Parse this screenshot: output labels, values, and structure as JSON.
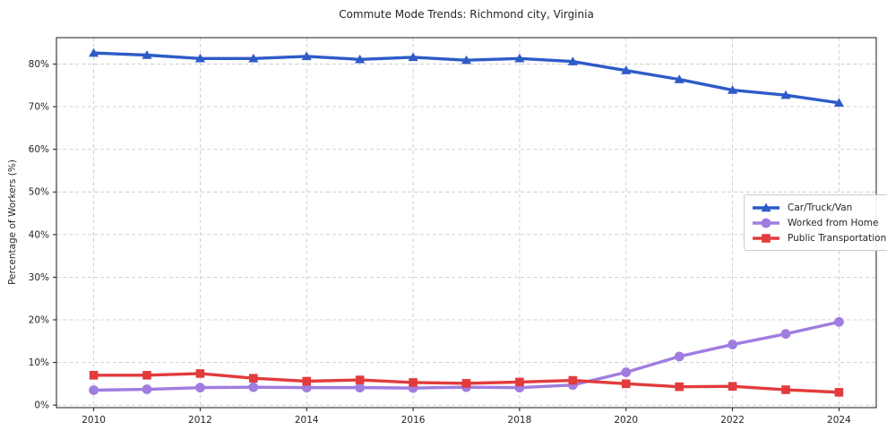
{
  "title": "Commute Mode Trends: Richmond city, Virginia",
  "colors": {
    "car": "#2d5bc8",
    "home": "#a07de0",
    "transit": "#e23b3c",
    "grid": "#cccccc",
    "spine": "#1a1a1a",
    "text": "#262626",
    "legend_border": "#cccccc",
    "background": "#ffffff"
  },
  "chart_data": {
    "type": "line",
    "title": "Commute Mode Trends: Richmond city, Virginia",
    "xlabel": "",
    "ylabel": "Percentage of Workers (%)",
    "grid": true,
    "legend_position": "center right",
    "xlim": [
      2009.3,
      2024.7
    ],
    "ylim": [
      -0.6,
      86.2
    ],
    "x": [
      2010,
      2011,
      2012,
      2013,
      2014,
      2015,
      2016,
      2017,
      2018,
      2019,
      2020,
      2021,
      2022,
      2023,
      2024
    ],
    "xticks": [
      2010,
      2012,
      2014,
      2016,
      2018,
      2020,
      2022,
      2024
    ],
    "xtick_labels": [
      "2010",
      "2012",
      "2014",
      "2016",
      "2018",
      "2020",
      "2022",
      "2024"
    ],
    "yticks": [
      0,
      10,
      20,
      30,
      40,
      50,
      60,
      70,
      80
    ],
    "ytick_labels": [
      "0%",
      "10%",
      "20%",
      "30%",
      "40%",
      "50%",
      "60%",
      "70%",
      "80%"
    ],
    "series": [
      {
        "name": "Car/Truck/Van",
        "color": "#2d5bc8",
        "marker": "triangle",
        "values": [
          82.6,
          82.1,
          81.3,
          81.3,
          81.8,
          81.1,
          81.6,
          80.9,
          81.3,
          80.6,
          78.5,
          76.4,
          73.9,
          72.7,
          70.9
        ]
      },
      {
        "name": "Worked from Home",
        "color": "#a07de0",
        "marker": "circle",
        "values": [
          3.5,
          3.7,
          4.1,
          4.2,
          4.1,
          4.1,
          4.0,
          4.2,
          4.1,
          4.7,
          7.7,
          11.4,
          14.2,
          16.7,
          19.5
        ]
      },
      {
        "name": "Public Transportation",
        "color": "#e23b3c",
        "marker": "square",
        "values": [
          7.0,
          7.0,
          7.4,
          6.3,
          5.6,
          5.9,
          5.3,
          5.1,
          5.4,
          5.8,
          5.0,
          4.3,
          4.4,
          3.6,
          3.0
        ]
      }
    ]
  }
}
